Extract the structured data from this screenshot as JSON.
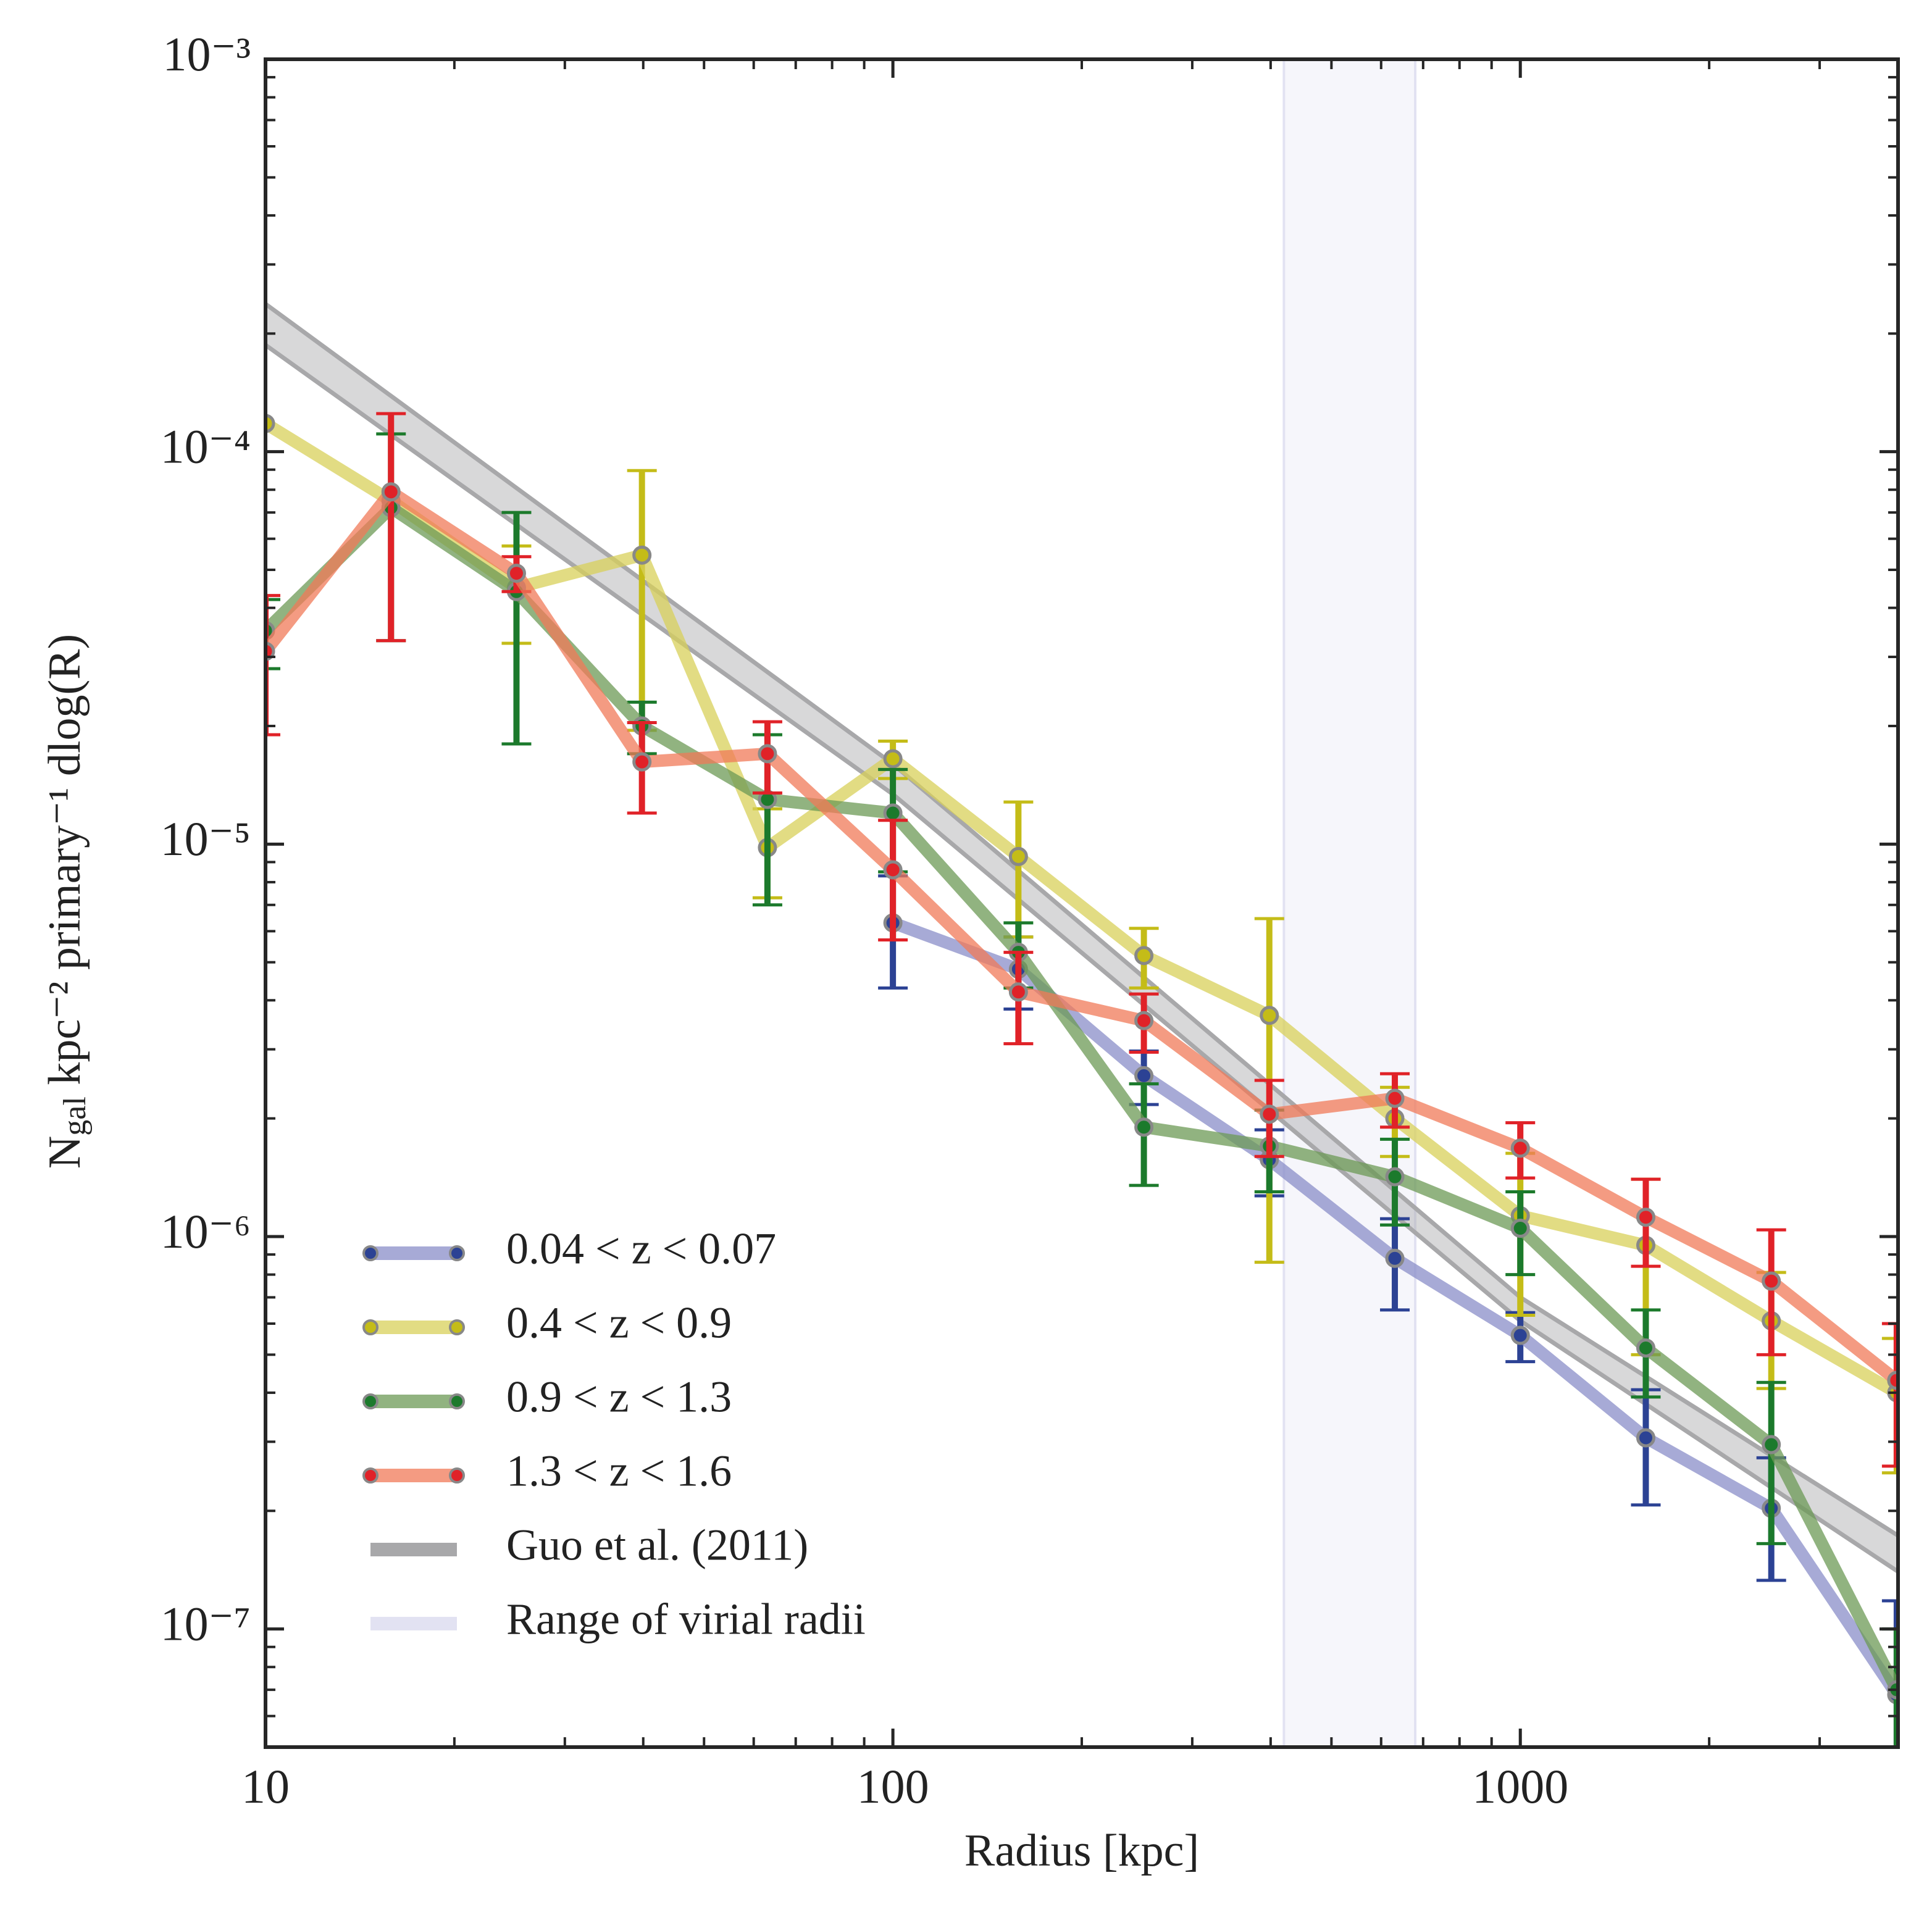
{
  "chart_data": {
    "type": "errorbar_line",
    "x_label": "Radius [kpc]",
    "y_label_parts": [
      "N",
      "gal",
      " kpc⁻² primary⁻¹ dlog(R)"
    ],
    "log_x": true,
    "log_y": true,
    "xlim": [
      10,
      4000
    ],
    "ylim": [
      5e-08,
      0.001
    ],
    "xticks": [
      10,
      100,
      1000
    ],
    "yticks": [
      {
        "value": 0.001,
        "label": "10⁻³"
      },
      {
        "value": 0.0001,
        "label": "10⁻⁴"
      },
      {
        "value": 1e-05,
        "label": "10⁻⁵"
      },
      {
        "value": 1e-06,
        "label": "10⁻⁶"
      },
      {
        "value": 1e-07,
        "label": "10⁻⁷"
      }
    ],
    "legend": "lower left",
    "x": [
      10,
      15.85,
      25.12,
      39.81,
      63.1,
      100,
      158.5,
      251.2,
      398.1,
      631,
      1000,
      1585,
      2512,
      3981
    ],
    "series": [
      {
        "name": "0.04 < z < 0.07",
        "color": "#8a8ec8",
        "error_color": "#2c4294",
        "values": [
          null,
          null,
          null,
          null,
          null,
          6.3e-06,
          4.8e-06,
          2.57e-06,
          1.57e-06,
          8.8e-07,
          5.6e-07,
          3.07e-07,
          2.03e-07,
          6.8e-08
        ],
        "errors": [
          null,
          null,
          null,
          null,
          null,
          2e-06,
          1e-06,
          4e-07,
          3e-07,
          2.3e-07,
          8e-08,
          1e-07,
          7e-08,
          5e-08
        ]
      },
      {
        "name": "0.4 < z < 0.9",
        "color": "#d8d05a",
        "error_color": "#c4bc18",
        "values": [
          0.000118,
          7.5e-05,
          4.5e-05,
          5.45e-05,
          9.8e-06,
          1.65e-05,
          9.3e-06,
          5.2e-06,
          3.66e-06,
          2e-06,
          1.13e-06,
          9.5e-07,
          6.1e-07,
          4e-07
        ],
        "errors": [
          null,
          null,
          1.25e-05,
          3.5e-05,
          2.5e-06,
          1.8e-06,
          3.5e-06,
          9e-07,
          2.8e-06,
          4e-07,
          5e-07,
          4.5e-07,
          2e-07,
          1.5e-07
        ]
      },
      {
        "name": "0.9 < z < 1.3",
        "color": "#6c9a56",
        "error_color": "#1c7a2c",
        "values": [
          3.5e-05,
          7.2e-05,
          4.4e-05,
          2e-05,
          1.3e-05,
          1.2e-05,
          5.3e-06,
          1.9e-06,
          1.7e-06,
          1.42e-06,
          1.05e-06,
          5.2e-07,
          2.95e-07,
          7e-08
        ],
        "errors": [
          7e-06,
          3.9e-05,
          2.6e-05,
          3e-06,
          6e-06,
          3.5e-06,
          1e-06,
          5.5e-07,
          4e-07,
          3.5e-07,
          2.5e-07,
          1.3e-07,
          1.3e-07,
          3e-08
        ]
      },
      {
        "name": "1.3 < z < 1.6",
        "color": "#f07a58",
        "error_color": "#e02228",
        "values": [
          3.1e-05,
          7.9e-05,
          4.9e-05,
          1.62e-05,
          1.7e-05,
          8.6e-06,
          4.2e-06,
          3.55e-06,
          2.05e-06,
          2.25e-06,
          1.68e-06,
          1.12e-06,
          7.7e-07,
          4.3e-07
        ],
        "errors": [
          1.2e-05,
          4.6e-05,
          5e-06,
          4.2e-06,
          3.5e-06,
          2.9e-06,
          1.1e-06,
          6e-07,
          4.5e-07,
          3.5e-07,
          2.7e-07,
          2.8e-07,
          2.7e-07,
          1.7e-07
        ]
      }
    ],
    "model": {
      "name": "Guo et al. (2011)",
      "color": "#a8a8aa",
      "x": [
        10,
        100,
        1000,
        4000
      ],
      "upper": [
        0.000238,
        1.6e-05,
        7e-07,
        1.73e-07
      ],
      "lower": [
        0.000187,
        1.34e-05,
        6.1e-07,
        1.4e-07
      ]
    },
    "virial": {
      "name": "Range of virial radii",
      "color": "#e2e2f2",
      "range": [
        420,
        680
      ]
    }
  }
}
